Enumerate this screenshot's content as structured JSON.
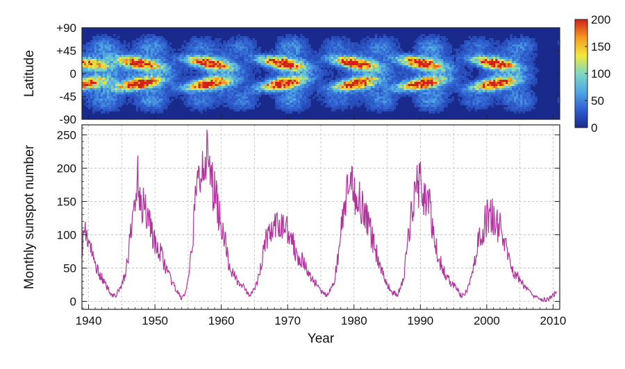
{
  "chart_data": [
    {
      "type": "heatmap",
      "title": "",
      "xlabel": "",
      "ylabel": "Latitude",
      "xlim": [
        1939,
        2011
      ],
      "ylim": [
        -90,
        90
      ],
      "yticks": [
        {
          "value": 90,
          "label": "+90"
        },
        {
          "value": 45,
          "label": "+45"
        },
        {
          "value": 0,
          "label": "0"
        },
        {
          "value": -45,
          "label": "-45"
        },
        {
          "value": -90,
          "label": "-90"
        }
      ],
      "colorbar": {
        "min": 0,
        "max": 200,
        "ticks": [
          0,
          50,
          100,
          150,
          200
        ],
        "colormap": [
          "#1a2a8c",
          "#2f5fd0",
          "#4fa8e6",
          "#7fd8c0",
          "#f2e83a",
          "#f59a20",
          "#d2201a"
        ]
      },
      "cycle_peaks": [
        1939.5,
        1947.5,
        1958,
        1969,
        1980,
        1990,
        2001
      ],
      "background_color": "#1a2a8c"
    },
    {
      "type": "line",
      "title": "",
      "xlabel": "Year",
      "ylabel": "Monthly sunspot number",
      "xlim": [
        1939,
        2011
      ],
      "ylim": [
        -12,
        265
      ],
      "xticks": [
        1940,
        1950,
        1960,
        1970,
        1980,
        1990,
        2000,
        2010
      ],
      "yticks": [
        0,
        50,
        100,
        150,
        200,
        250
      ],
      "grid": true,
      "line_color": "#b0349b",
      "series": [
        {
          "x": [
            1939.0,
            1939.5,
            1940.0,
            1940.5,
            1941.0,
            1941.5,
            1942.0,
            1942.5,
            1943.0,
            1943.5,
            1944.0,
            1944.5,
            1945.0,
            1945.5,
            1946.0,
            1946.5,
            1947.0,
            1947.5,
            1948.0,
            1948.5,
            1949.0,
            1949.5,
            1950.0,
            1950.5,
            1951.0,
            1951.5,
            1952.0,
            1952.5,
            1953.0,
            1953.5,
            1954.0,
            1954.5,
            1955.0,
            1955.5,
            1956.0,
            1956.5,
            1957.0,
            1957.5,
            1958.0,
            1958.5,
            1959.0,
            1959.5,
            1960.0,
            1960.5,
            1961.0,
            1961.5,
            1962.0,
            1962.5,
            1963.0,
            1963.5,
            1964.0,
            1964.5,
            1965.0,
            1965.5,
            1966.0,
            1966.5,
            1967.0,
            1967.5,
            1968.0,
            1968.5,
            1969.0,
            1969.5,
            1970.0,
            1970.5,
            1971.0,
            1971.5,
            1972.0,
            1972.5,
            1973.0,
            1973.5,
            1974.0,
            1974.5,
            1975.0,
            1975.5,
            1976.0,
            1976.5,
            1977.0,
            1977.5,
            1978.0,
            1978.5,
            1979.0,
            1979.5,
            1980.0,
            1980.5,
            1981.0,
            1981.5,
            1982.0,
            1982.5,
            1983.0,
            1983.5,
            1984.0,
            1984.5,
            1985.0,
            1985.5,
            1986.0,
            1986.5,
            1987.0,
            1987.5,
            1988.0,
            1988.5,
            1989.0,
            1989.5,
            1990.0,
            1990.5,
            1991.0,
            1991.5,
            1992.0,
            1992.5,
            1993.0,
            1993.5,
            1994.0,
            1994.5,
            1995.0,
            1995.5,
            1996.0,
            1996.5,
            1997.0,
            1997.5,
            1998.0,
            1998.5,
            1999.0,
            1999.5,
            2000.0,
            2000.5,
            2001.0,
            2001.5,
            2002.0,
            2002.5,
            2003.0,
            2003.5,
            2004.0,
            2004.5,
            2005.0,
            2005.5,
            2006.0,
            2006.5,
            2007.0,
            2007.5,
            2008.0,
            2008.5,
            2009.0,
            2009.5,
            2010.0,
            2010.5
          ],
          "values": [
            85,
            110,
            90,
            70,
            55,
            45,
            35,
            25,
            18,
            10,
            8,
            15,
            25,
            40,
            70,
            110,
            160,
            185,
            150,
            140,
            130,
            110,
            85,
            75,
            70,
            55,
            40,
            30,
            20,
            12,
            5,
            10,
            30,
            70,
            140,
            180,
            200,
            235,
            200,
            180,
            165,
            140,
            115,
            100,
            60,
            45,
            40,
            30,
            25,
            20,
            10,
            12,
            18,
            30,
            55,
            85,
            100,
            105,
            110,
            110,
            115,
            115,
            110,
            100,
            80,
            70,
            65,
            55,
            45,
            35,
            30,
            25,
            15,
            10,
            10,
            18,
            30,
            60,
            100,
            140,
            160,
            170,
            165,
            160,
            150,
            140,
            120,
            105,
            85,
            70,
            50,
            40,
            25,
            18,
            12,
            10,
            20,
            35,
            80,
            120,
            160,
            180,
            175,
            165,
            150,
            135,
            95,
            75,
            60,
            45,
            35,
            30,
            25,
            18,
            10,
            8,
            15,
            30,
            55,
            80,
            95,
            110,
            125,
            135,
            125,
            115,
            110,
            95,
            75,
            60,
            45,
            40,
            30,
            25,
            20,
            15,
            10,
            8,
            5,
            3,
            2,
            4,
            8,
            15
          ]
        }
      ]
    }
  ]
}
